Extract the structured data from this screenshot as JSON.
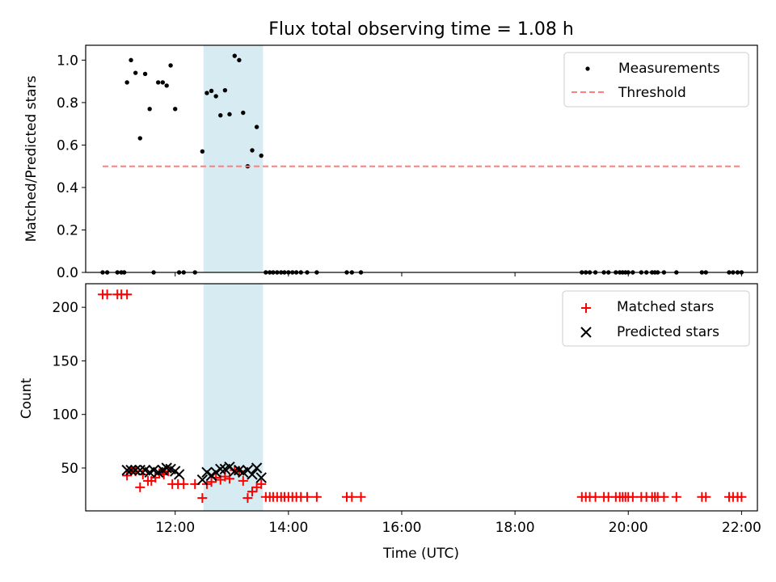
{
  "title": "Flux total observing time = 1.08 h",
  "chart_data": [
    {
      "type": "scatter",
      "panel": "top",
      "xlabel": "",
      "ylabel": "Matched/Predicted stars",
      "xlim": [
        10.42,
        22.28
      ],
      "ylim": [
        0.0,
        1.07
      ],
      "yticks": [
        0.0,
        0.2,
        0.4,
        0.6,
        0.8,
        1.0
      ],
      "ytick_labels": [
        "0.0",
        "0.2",
        "0.4",
        "0.6",
        "0.8",
        "1.0"
      ],
      "xticks": [
        12,
        14,
        16,
        18,
        20,
        22
      ],
      "grid": false,
      "legend": "top-right",
      "highlight_span": {
        "x0": 12.5,
        "x1": 13.55,
        "color": "#add8e6"
      },
      "series": [
        {
          "name": "Measurements",
          "kind": "scatter",
          "color": "#000000",
          "x": [
            10.72,
            10.8,
            10.98,
            11.05,
            11.1,
            11.15,
            11.22,
            11.3,
            11.38,
            11.47,
            11.55,
            11.62,
            11.7,
            11.78,
            11.85,
            11.92,
            12.0,
            12.07,
            12.15,
            12.35,
            12.48,
            12.56,
            12.64,
            12.72,
            12.8,
            12.88,
            12.96,
            13.05,
            13.13,
            13.2,
            13.28,
            13.36,
            13.44,
            13.52,
            13.6,
            13.67,
            13.73,
            13.8,
            13.87,
            13.93,
            14.0,
            14.07,
            14.14,
            14.22,
            14.33,
            14.5,
            15.03,
            15.12,
            15.28,
            19.18,
            19.25,
            19.32,
            19.42,
            19.57,
            19.65,
            19.78,
            19.85,
            19.9,
            19.95,
            20.0,
            20.08,
            20.23,
            20.32,
            20.42,
            20.47,
            20.52,
            20.63,
            20.85,
            21.3,
            21.37,
            21.78,
            21.85,
            21.93,
            22.0
          ],
          "y": [
            0.0,
            0.0,
            0.0,
            0.0,
            0.0,
            0.895,
            1.0,
            0.94,
            0.632,
            0.935,
            0.77,
            0.0,
            0.895,
            0.895,
            0.88,
            0.975,
            0.77,
            0.0,
            0.0,
            0.0,
            0.57,
            0.845,
            0.855,
            0.83,
            0.74,
            0.858,
            0.745,
            1.02,
            1.0,
            0.752,
            0.5,
            0.575,
            0.685,
            0.55,
            0.0,
            0.0,
            0.0,
            0.0,
            0.0,
            0.0,
            0.0,
            0.0,
            0.0,
            0.0,
            0.0,
            0.0,
            0.0,
            0.0,
            0.0,
            0.0,
            0.0,
            0.0,
            0.0,
            0.0,
            0.0,
            0.0,
            0.0,
            0.0,
            0.0,
            0.0,
            0.0,
            0.0,
            0.0,
            0.0,
            0.0,
            0.0,
            0.0,
            0.0,
            0.0,
            0.0,
            0.0,
            0.0,
            0.0,
            0.0
          ]
        },
        {
          "name": "Threshold",
          "kind": "dashed-line",
          "color": "#ff7f7f",
          "x": [
            10.72,
            22.0
          ],
          "y": [
            0.5,
            0.5
          ]
        }
      ]
    },
    {
      "type": "scatter",
      "panel": "bottom",
      "xlabel": "Time (UTC)",
      "ylabel": "Count",
      "xlim": [
        10.42,
        22.28
      ],
      "ylim": [
        10,
        222
      ],
      "yticks": [
        50,
        100,
        150,
        200
      ],
      "ytick_labels": [
        "50",
        "100",
        "150",
        "200"
      ],
      "xticks": [
        12,
        14,
        16,
        18,
        20,
        22
      ],
      "xtick_labels": [
        "12:00",
        "14:00",
        "16:00",
        "18:00",
        "20:00",
        "22:00"
      ],
      "grid": false,
      "legend": "top-right",
      "highlight_span": {
        "x0": 12.5,
        "x1": 13.55,
        "color": "#add8e6"
      },
      "series": [
        {
          "name": "Matched stars",
          "kind": "plus",
          "color": "#ff0000",
          "x": [
            10.72,
            10.8,
            10.98,
            11.05,
            11.15,
            11.15,
            11.22,
            11.3,
            11.38,
            11.43,
            11.52,
            11.58,
            11.65,
            11.72,
            11.8,
            11.88,
            11.95,
            12.05,
            12.15,
            12.35,
            12.48,
            12.56,
            12.64,
            12.72,
            12.8,
            12.88,
            12.96,
            13.05,
            13.13,
            13.2,
            13.28,
            13.36,
            13.44,
            13.52,
            13.6,
            13.67,
            13.73,
            13.8,
            13.87,
            13.93,
            14.0,
            14.07,
            14.14,
            14.22,
            14.33,
            14.5,
            15.03,
            15.12,
            15.28,
            19.18,
            19.25,
            19.32,
            19.42,
            19.57,
            19.65,
            19.78,
            19.85,
            19.9,
            19.95,
            20.0,
            20.08,
            20.23,
            20.32,
            20.42,
            20.47,
            20.52,
            20.63,
            20.85,
            21.3,
            21.37,
            21.78,
            21.85,
            21.93,
            22.0
          ],
          "y": [
            212,
            212,
            212,
            212,
            212,
            43,
            48,
            47,
            32,
            44,
            38,
            38,
            41,
            45,
            44,
            47,
            35,
            35,
            35,
            35,
            22,
            35,
            37,
            41,
            39,
            42,
            40,
            48,
            47,
            38,
            22,
            28,
            32,
            35,
            23,
            23,
            23,
            23,
            23,
            23,
            23,
            23,
            23,
            23,
            23,
            23,
            23,
            23,
            23,
            23,
            23,
            23,
            23,
            23,
            23,
            23,
            23,
            23,
            23,
            23,
            23,
            23,
            23,
            23,
            23,
            23,
            23,
            23,
            23,
            23,
            23,
            23,
            23,
            23
          ]
        },
        {
          "name": "Predicted stars",
          "kind": "cross",
          "color": "#000000",
          "x": [
            11.15,
            11.22,
            11.3,
            11.38,
            11.47,
            11.55,
            11.62,
            11.7,
            11.78,
            11.85,
            11.92,
            12.0,
            12.07,
            12.48,
            12.56,
            12.64,
            12.72,
            12.8,
            12.88,
            12.96,
            13.05,
            13.13,
            13.2,
            13.28,
            13.36,
            13.44,
            13.52
          ],
          "y": [
            48,
            48,
            48,
            48,
            48,
            46,
            48,
            46,
            48,
            50,
            49,
            47,
            44,
            39,
            46,
            43,
            46,
            49,
            49,
            51,
            47,
            48,
            46,
            48,
            44,
            50,
            41
          ]
        }
      ]
    }
  ]
}
